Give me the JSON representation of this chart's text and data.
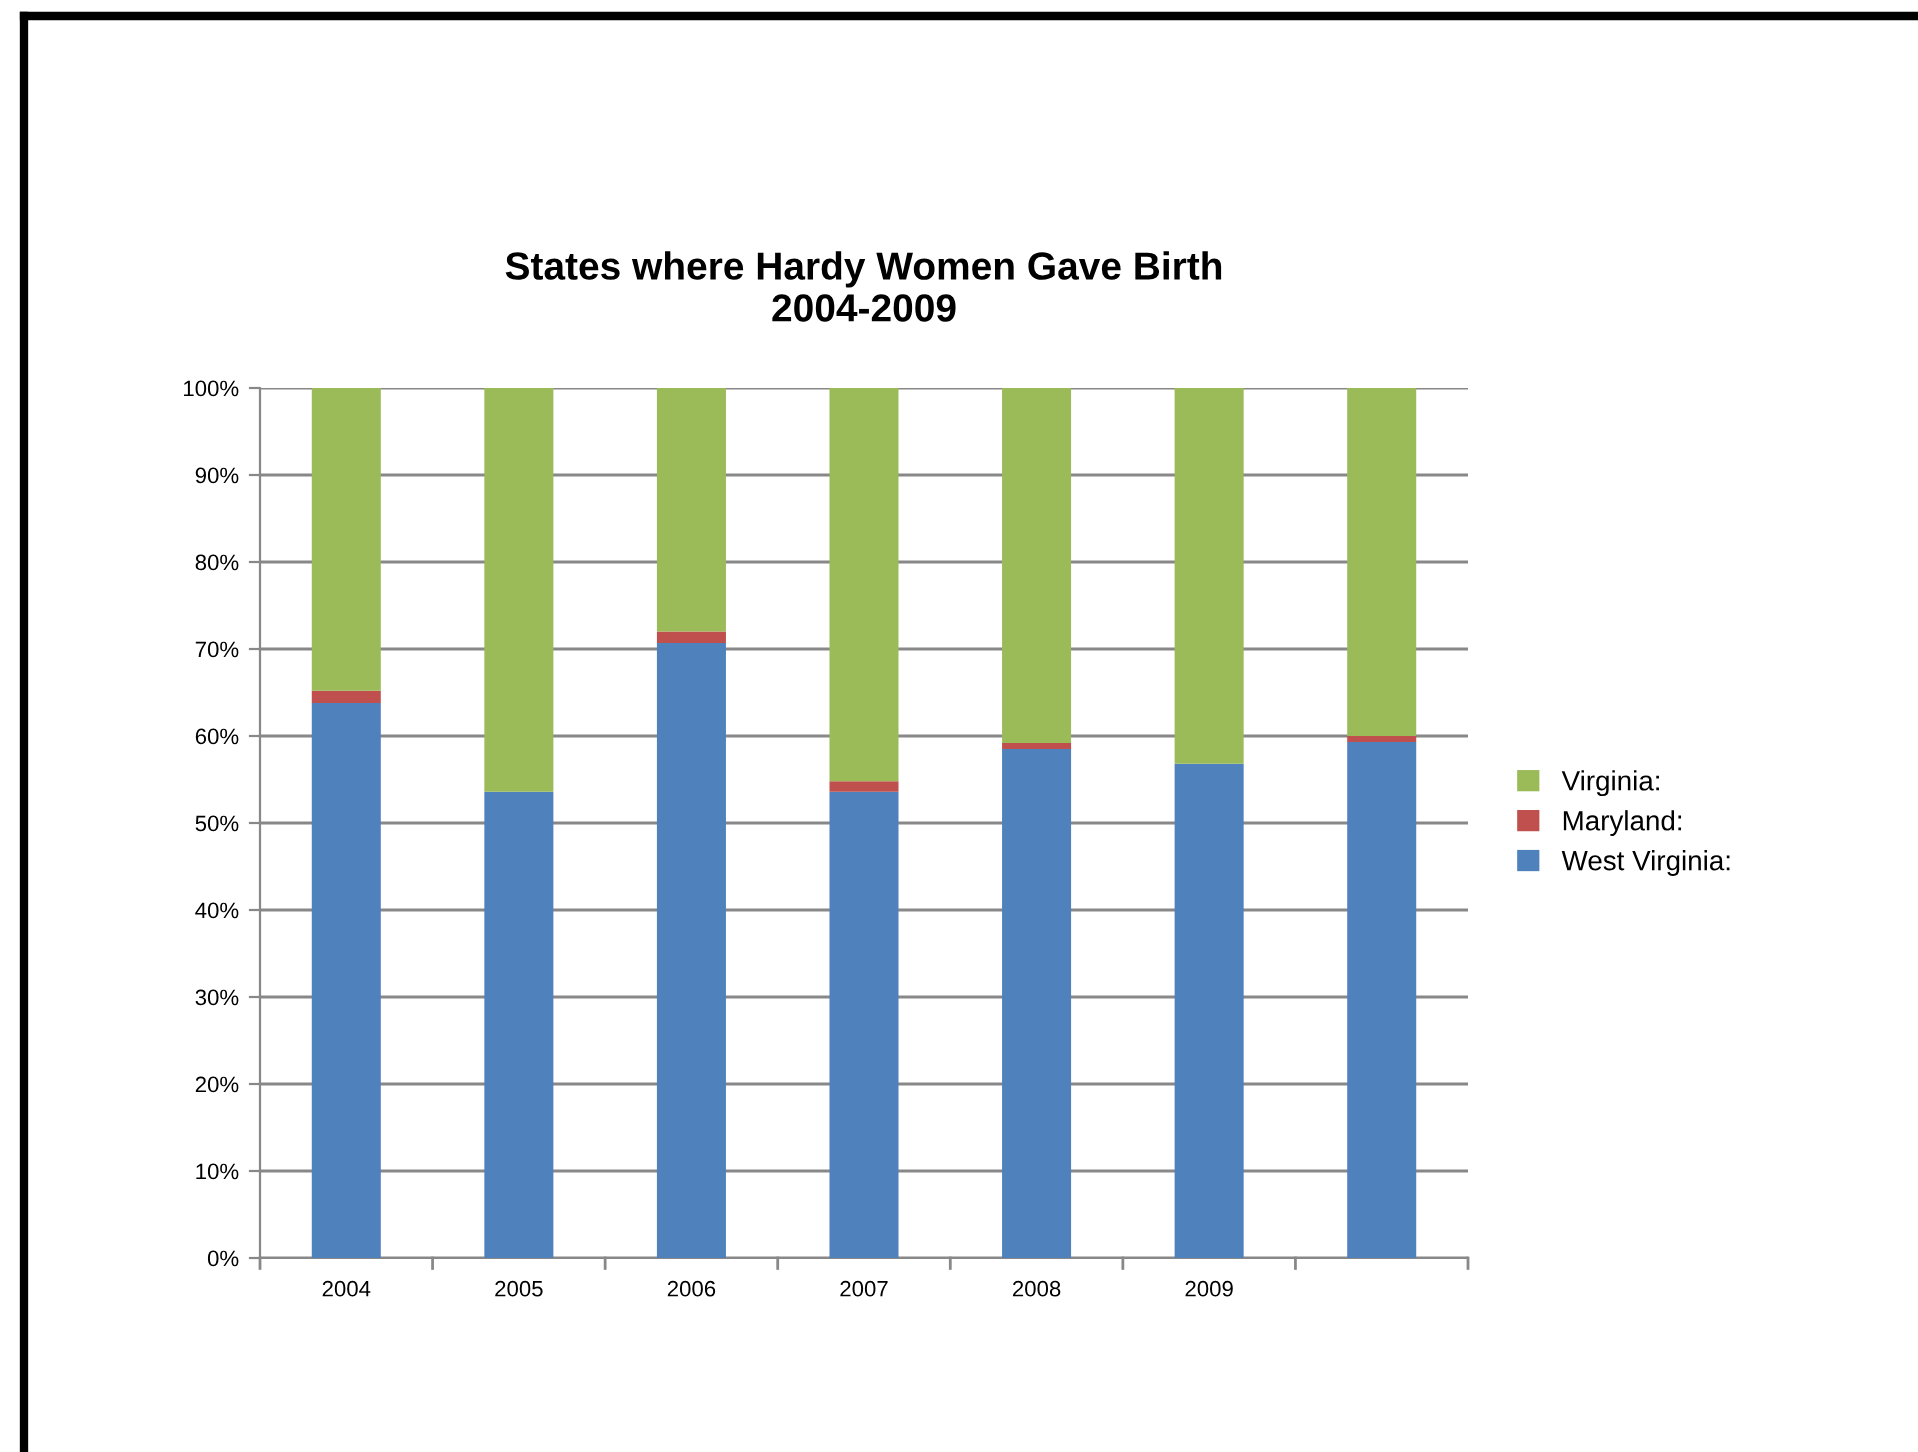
{
  "chart_data": {
    "type": "bar",
    "title": "States where Hardy Women Gave Birth\n2004-2009",
    "categories": [
      "2004",
      "2005",
      "2006",
      "2007",
      "2008",
      "2009",
      null
    ],
    "stacked": true,
    "series": [
      {
        "name": "West Virginia:",
        "color": "#4f81bd",
        "values": [
          63.8,
          53.6,
          70.7,
          53.6,
          58.5,
          56.8,
          59.3
        ]
      },
      {
        "name": "Maryland:",
        "color": "#c0504d",
        "values": [
          1.4,
          0,
          1.3,
          1.2,
          0.7,
          0,
          0.7
        ]
      },
      {
        "name": "Virginia:",
        "color": "#9bbb59",
        "values": [
          34.8,
          46.4,
          28.0,
          45.2,
          40.8,
          43.2,
          40.0
        ]
      }
    ],
    "ylim": [
      0,
      100
    ],
    "yticks": [
      {
        "value": 0,
        "label": "0%"
      },
      {
        "value": 10,
        "label": "10%"
      },
      {
        "value": 20,
        "label": "20%"
      },
      {
        "value": 30,
        "label": "30%"
      },
      {
        "value": 40,
        "label": "40%"
      },
      {
        "value": 50,
        "label": "50%"
      },
      {
        "value": 60,
        "label": "60%"
      },
      {
        "value": 70,
        "label": "70%"
      },
      {
        "value": 80,
        "label": "80%"
      },
      {
        "value": 90,
        "label": "90%"
      },
      {
        "value": 100,
        "label": "100%"
      }
    ],
    "grid": "y",
    "legend": "right"
  }
}
